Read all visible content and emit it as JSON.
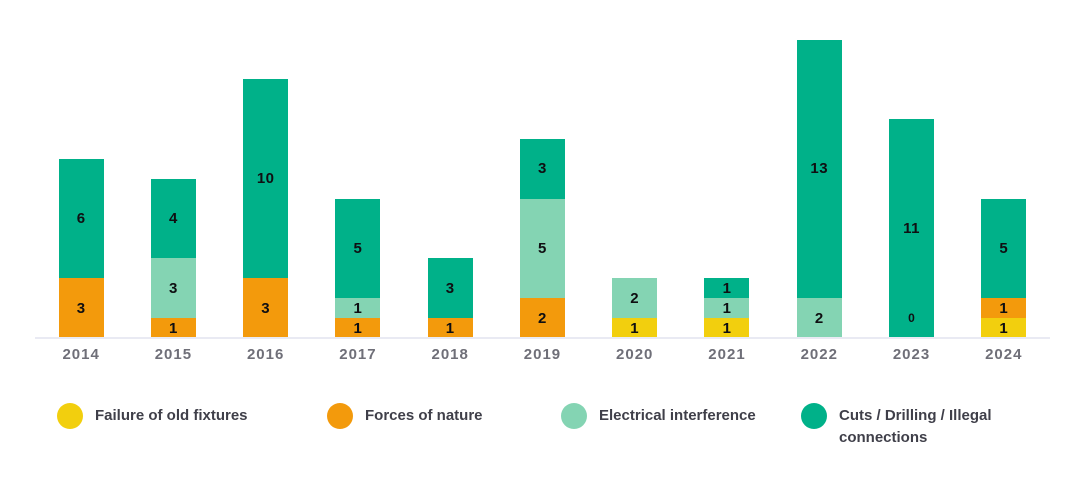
{
  "chart_data": {
    "type": "bar",
    "stacked": true,
    "title": "",
    "xlabel": "",
    "ylabel": "",
    "categories": [
      "2014",
      "2015",
      "2016",
      "2017",
      "2018",
      "2019",
      "2020",
      "2021",
      "2022",
      "2023",
      "2024"
    ],
    "series": [
      {
        "name": "Failure of old fixtures",
        "color": "#f2cf0e",
        "values": [
          0,
          0,
          0,
          0,
          0,
          0,
          1,
          1,
          0,
          0,
          1
        ]
      },
      {
        "name": "Forces of nature",
        "color": "#f39a0c",
        "values": [
          3,
          1,
          3,
          1,
          1,
          2,
          0,
          0,
          0,
          0,
          1
        ]
      },
      {
        "name": "Electrical interference",
        "color": "#84d4b3",
        "values": [
          0,
          3,
          0,
          1,
          0,
          5,
          2,
          1,
          2,
          0,
          0
        ]
      },
      {
        "name": "Cuts / Drilling / Illegal connections",
        "color": "#00b189",
        "values": [
          6,
          4,
          10,
          5,
          3,
          3,
          0,
          1,
          13,
          11,
          5
        ]
      }
    ],
    "totals": [
      9,
      8,
      13,
      7,
      4,
      10,
      3,
      3,
      15,
      11,
      7
    ],
    "annotations": [
      {
        "category": "2023",
        "text": "0",
        "position": "inside-bar-bottom"
      }
    ],
    "data_labels": true,
    "ylim": [
      0,
      15
    ],
    "grid": false,
    "y_axis_visible": false,
    "legend_position": "bottom",
    "colors": {
      "axis_line": "#e9eaf3",
      "tick_label": "#6f6f78",
      "data_label": "#0f0f12",
      "legend_text": "#3f3f49",
      "background": "#ffffff"
    }
  }
}
